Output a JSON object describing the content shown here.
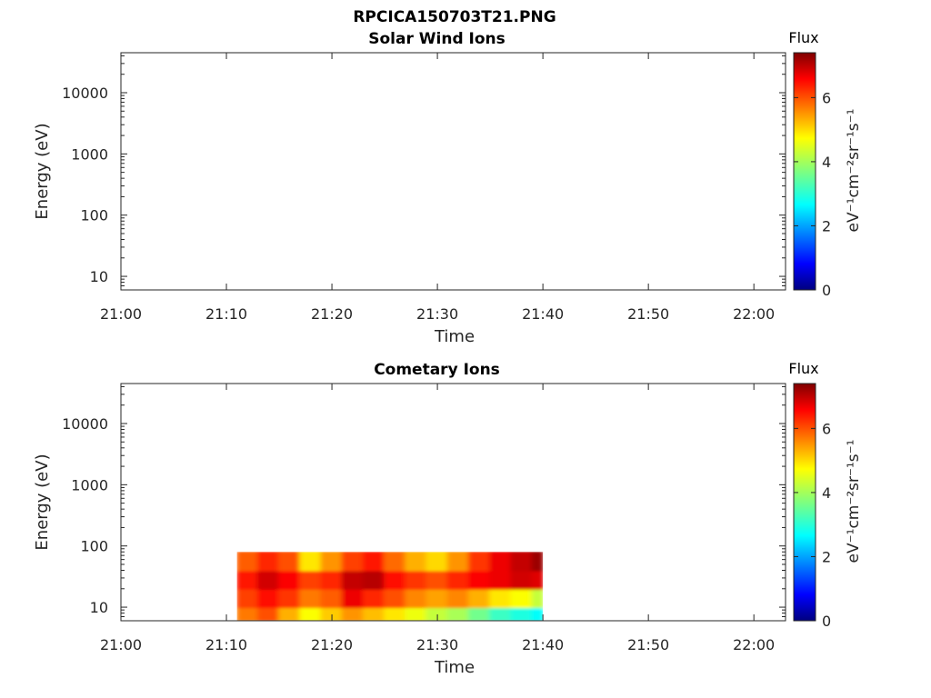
{
  "figure": {
    "main_title": "RPCICA150703T21.PNG"
  },
  "chart_data": [
    {
      "type": "heatmap",
      "title": "Solar Wind Ions",
      "xlabel": "Time",
      "ylabel": "Energy (eV)",
      "x_ticks": [
        "21:00",
        "21:10",
        "21:20",
        "21:30",
        "21:40",
        "21:50",
        "22:00"
      ],
      "x_range": [
        "21:00",
        "22:03"
      ],
      "y_scale": "log",
      "y_ticks": [
        "10",
        "100",
        "1000",
        "10000"
      ],
      "y_range": [
        6,
        45000
      ],
      "colorbar": {
        "label": "Flux",
        "unit": "eV⁻¹cm⁻²sr⁻¹s⁻¹",
        "ticks": [
          "0",
          "2",
          "4",
          "6"
        ],
        "range": [
          0,
          7.4
        ],
        "colormap": "jet"
      },
      "data_cells": []
    },
    {
      "type": "heatmap",
      "title": "Cometary Ions",
      "xlabel": "Time",
      "ylabel": "Energy (eV)",
      "x_ticks": [
        "21:00",
        "21:10",
        "21:20",
        "21:30",
        "21:40",
        "21:50",
        "22:00"
      ],
      "x_range": [
        "21:00",
        "22:03"
      ],
      "y_scale": "log",
      "y_ticks": [
        "10",
        "100",
        "1000",
        "10000"
      ],
      "y_range": [
        6,
        45000
      ],
      "colorbar": {
        "label": "Flux",
        "unit": "eV⁻¹cm⁻²sr⁻¹s⁻¹",
        "ticks": [
          "0",
          "2",
          "4",
          "6"
        ],
        "range": [
          0,
          7.4
        ],
        "colormap": "jet"
      },
      "data_extent": {
        "time_start": "21:11",
        "time_end": "21:40",
        "energy_min": 6,
        "energy_max": 80
      },
      "data_cells": [
        {
          "t": "21:11",
          "e": [
            6,
            10
          ],
          "v": 5.6
        },
        {
          "t": "21:11",
          "e": [
            10,
            20
          ],
          "v": 6.0
        },
        {
          "t": "21:11",
          "e": [
            20,
            40
          ],
          "v": 6.3
        },
        {
          "t": "21:11",
          "e": [
            40,
            80
          ],
          "v": 5.8
        },
        {
          "t": "21:13",
          "e": [
            6,
            10
          ],
          "v": 5.9
        },
        {
          "t": "21:13",
          "e": [
            10,
            20
          ],
          "v": 6.4
        },
        {
          "t": "21:13",
          "e": [
            20,
            40
          ],
          "v": 6.8
        },
        {
          "t": "21:13",
          "e": [
            40,
            80
          ],
          "v": 6.2
        },
        {
          "t": "21:15",
          "e": [
            6,
            10
          ],
          "v": 5.2
        },
        {
          "t": "21:15",
          "e": [
            10,
            20
          ],
          "v": 6.1
        },
        {
          "t": "21:15",
          "e": [
            20,
            40
          ],
          "v": 6.5
        },
        {
          "t": "21:15",
          "e": [
            40,
            80
          ],
          "v": 5.9
        },
        {
          "t": "21:17",
          "e": [
            6,
            10
          ],
          "v": 4.6
        },
        {
          "t": "21:17",
          "e": [
            10,
            20
          ],
          "v": 5.6
        },
        {
          "t": "21:17",
          "e": [
            20,
            40
          ],
          "v": 6.0
        },
        {
          "t": "21:17",
          "e": [
            40,
            80
          ],
          "v": 4.8
        },
        {
          "t": "21:19",
          "e": [
            6,
            10
          ],
          "v": 5.0
        },
        {
          "t": "21:19",
          "e": [
            10,
            20
          ],
          "v": 5.8
        },
        {
          "t": "21:19",
          "e": [
            20,
            40
          ],
          "v": 6.2
        },
        {
          "t": "21:19",
          "e": [
            40,
            80
          ],
          "v": 5.4
        },
        {
          "t": "21:21",
          "e": [
            6,
            10
          ],
          "v": 5.4
        },
        {
          "t": "21:21",
          "e": [
            10,
            20
          ],
          "v": 6.6
        },
        {
          "t": "21:21",
          "e": [
            20,
            40
          ],
          "v": 6.9
        },
        {
          "t": "21:21",
          "e": [
            40,
            80
          ],
          "v": 6.0
        },
        {
          "t": "21:23",
          "e": [
            6,
            10
          ],
          "v": 5.1
        },
        {
          "t": "21:23",
          "e": [
            10,
            20
          ],
          "v": 6.2
        },
        {
          "t": "21:23",
          "e": [
            20,
            40
          ],
          "v": 7.0
        },
        {
          "t": "21:23",
          "e": [
            40,
            80
          ],
          "v": 6.3
        },
        {
          "t": "21:25",
          "e": [
            6,
            10
          ],
          "v": 4.8
        },
        {
          "t": "21:25",
          "e": [
            10,
            20
          ],
          "v": 5.9
        },
        {
          "t": "21:25",
          "e": [
            20,
            40
          ],
          "v": 6.4
        },
        {
          "t": "21:25",
          "e": [
            40,
            80
          ],
          "v": 5.7
        },
        {
          "t": "21:27",
          "e": [
            6,
            10
          ],
          "v": 4.5
        },
        {
          "t": "21:27",
          "e": [
            10,
            20
          ],
          "v": 5.5
        },
        {
          "t": "21:27",
          "e": [
            20,
            40
          ],
          "v": 6.1
        },
        {
          "t": "21:27",
          "e": [
            40,
            80
          ],
          "v": 5.2
        },
        {
          "t": "21:29",
          "e": [
            6,
            10
          ],
          "v": 4.2
        },
        {
          "t": "21:29",
          "e": [
            10,
            20
          ],
          "v": 5.3
        },
        {
          "t": "21:29",
          "e": [
            20,
            40
          ],
          "v": 5.9
        },
        {
          "t": "21:29",
          "e": [
            40,
            80
          ],
          "v": 4.9
        },
        {
          "t": "21:31",
          "e": [
            6,
            10
          ],
          "v": 4.0
        },
        {
          "t": "21:31",
          "e": [
            10,
            20
          ],
          "v": 5.5
        },
        {
          "t": "21:31",
          "e": [
            20,
            40
          ],
          "v": 6.2
        },
        {
          "t": "21:31",
          "e": [
            40,
            80
          ],
          "v": 5.4
        },
        {
          "t": "21:33",
          "e": [
            6,
            10
          ],
          "v": 3.6
        },
        {
          "t": "21:33",
          "e": [
            10,
            20
          ],
          "v": 5.2
        },
        {
          "t": "21:33",
          "e": [
            20,
            40
          ],
          "v": 6.5
        },
        {
          "t": "21:33",
          "e": [
            40,
            80
          ],
          "v": 6.1
        },
        {
          "t": "21:35",
          "e": [
            6,
            10
          ],
          "v": 3.2
        },
        {
          "t": "21:35",
          "e": [
            10,
            20
          ],
          "v": 4.8
        },
        {
          "t": "21:35",
          "e": [
            20,
            40
          ],
          "v": 6.6
        },
        {
          "t": "21:35",
          "e": [
            40,
            80
          ],
          "v": 6.6
        },
        {
          "t": "21:37",
          "e": [
            6,
            10
          ],
          "v": 3.0
        },
        {
          "t": "21:37",
          "e": [
            10,
            20
          ],
          "v": 4.6
        },
        {
          "t": "21:37",
          "e": [
            20,
            40
          ],
          "v": 6.8
        },
        {
          "t": "21:37",
          "e": [
            40,
            80
          ],
          "v": 6.9
        },
        {
          "t": "21:39",
          "e": [
            6,
            10
          ],
          "v": 2.8
        },
        {
          "t": "21:39",
          "e": [
            10,
            20
          ],
          "v": 4.2
        },
        {
          "t": "21:39",
          "e": [
            20,
            40
          ],
          "v": 6.7
        },
        {
          "t": "21:39",
          "e": [
            40,
            80
          ],
          "v": 7.2
        }
      ]
    }
  ]
}
